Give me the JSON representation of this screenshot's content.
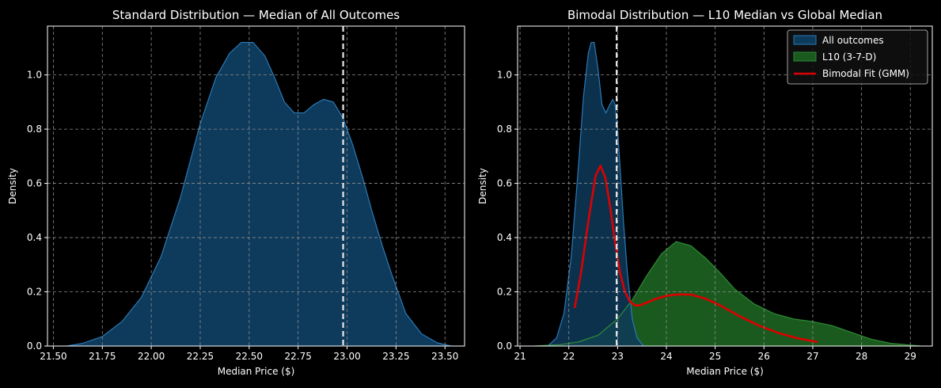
{
  "colors": {
    "background": "#000000",
    "axes_edge": "#ffffff",
    "text": "#ffffff",
    "grid": "#8c8c8c",
    "all_fill": "#0e3a5b",
    "all_line": "#2a7ab7",
    "l10_fill": "#1b5a1e",
    "l10_line": "#2e8b36",
    "overlap_fill": "#1f6e48",
    "gmm": "#dd0000",
    "median_line": "#e6e6e6"
  },
  "chart_data": [
    {
      "type": "area",
      "title": "Standard Distribution — Median of All Outcomes",
      "xlabel": "Median Price ($)",
      "ylabel": "Density",
      "xlim": [
        21.47,
        23.6
      ],
      "ylim": [
        0,
        1.18
      ],
      "xticks": [
        "21.50",
        "21.75",
        "22.00",
        "22.25",
        "22.50",
        "22.75",
        "23.00",
        "23.25",
        "23.50"
      ],
      "xtick_values": [
        21.5,
        21.75,
        22.0,
        22.25,
        22.5,
        22.75,
        23.0,
        23.25,
        23.5
      ],
      "yticks": [
        "0.0",
        "0.2",
        "0.4",
        "0.6",
        "0.8",
        "1.0"
      ],
      "ytick_values": [
        0,
        0.2,
        0.4,
        0.6,
        0.8,
        1.0
      ],
      "grid": true,
      "median_line_x": 22.98,
      "series": [
        {
          "x": [
            21.57,
            21.65,
            21.75,
            21.85,
            21.95,
            22.05,
            22.15,
            22.25,
            22.33,
            22.4,
            22.46,
            22.52,
            22.58,
            22.63,
            22.68,
            22.73,
            22.78,
            22.83,
            22.88,
            22.93,
            22.98,
            23.03,
            23.08,
            23.13,
            23.18,
            23.23,
            23.3,
            23.38,
            23.46,
            23.53
          ],
          "y": [
            0.0,
            0.01,
            0.035,
            0.09,
            0.18,
            0.33,
            0.55,
            0.82,
            0.99,
            1.08,
            1.12,
            1.12,
            1.07,
            0.99,
            0.9,
            0.86,
            0.86,
            0.89,
            0.91,
            0.9,
            0.84,
            0.74,
            0.62,
            0.49,
            0.37,
            0.26,
            0.12,
            0.045,
            0.012,
            0.0
          ]
        }
      ]
    },
    {
      "type": "area",
      "title": "Bimodal Distribution — L10 Median vs Global Median",
      "xlabel": "Median Price ($)",
      "ylabel": "Density",
      "xlim": [
        20.95,
        29.45
      ],
      "ylim": [
        0,
        1.18
      ],
      "xticks": [
        "21",
        "22",
        "23",
        "24",
        "25",
        "26",
        "27",
        "28",
        "29"
      ],
      "xtick_values": [
        21,
        22,
        23,
        24,
        25,
        26,
        27,
        28,
        29
      ],
      "yticks": [
        "0.0",
        "0.2",
        "0.4",
        "0.6",
        "0.8",
        "1.0"
      ],
      "ytick_values": [
        0,
        0.2,
        0.4,
        0.6,
        0.8,
        1.0
      ],
      "grid": true,
      "legend_position": "top-right",
      "median_line_x": 22.98,
      "series": [
        {
          "name": "All outcomes",
          "x": [
            21.57,
            21.75,
            21.9,
            22.05,
            22.2,
            22.3,
            22.4,
            22.46,
            22.52,
            22.6,
            22.68,
            22.76,
            22.84,
            22.9,
            22.95,
            23.0,
            23.05,
            23.12,
            23.2,
            23.3,
            23.4,
            23.53
          ],
          "y": [
            0.0,
            0.03,
            0.12,
            0.33,
            0.67,
            0.92,
            1.08,
            1.12,
            1.12,
            1.02,
            0.89,
            0.86,
            0.89,
            0.91,
            0.89,
            0.8,
            0.66,
            0.46,
            0.27,
            0.1,
            0.03,
            0.0
          ]
        },
        {
          "name": "L10 (3-7-D)",
          "x": [
            21.3,
            21.8,
            22.2,
            22.6,
            23.0,
            23.3,
            23.6,
            23.9,
            24.2,
            24.5,
            24.8,
            25.1,
            25.4,
            25.8,
            26.2,
            26.6,
            27.0,
            27.4,
            27.8,
            28.2,
            28.6,
            29.2
          ],
          "y": [
            0.0,
            0.005,
            0.015,
            0.04,
            0.1,
            0.17,
            0.26,
            0.34,
            0.385,
            0.37,
            0.325,
            0.27,
            0.21,
            0.155,
            0.12,
            0.1,
            0.09,
            0.075,
            0.05,
            0.025,
            0.01,
            0.0
          ]
        },
        {
          "name": "Bimodal Fit (GMM)",
          "x": [
            22.12,
            22.25,
            22.4,
            22.55,
            22.65,
            22.75,
            22.85,
            22.95,
            23.05,
            23.15,
            23.25,
            23.35,
            23.45,
            23.6,
            23.8,
            24.0,
            24.2,
            24.5,
            24.8,
            25.1,
            25.5,
            25.9,
            26.3,
            26.7,
            27.1
          ],
          "y": [
            0.14,
            0.27,
            0.46,
            0.63,
            0.665,
            0.62,
            0.51,
            0.38,
            0.27,
            0.2,
            0.165,
            0.15,
            0.15,
            0.16,
            0.175,
            0.185,
            0.19,
            0.19,
            0.175,
            0.15,
            0.11,
            0.075,
            0.048,
            0.028,
            0.015
          ]
        }
      ]
    }
  ]
}
